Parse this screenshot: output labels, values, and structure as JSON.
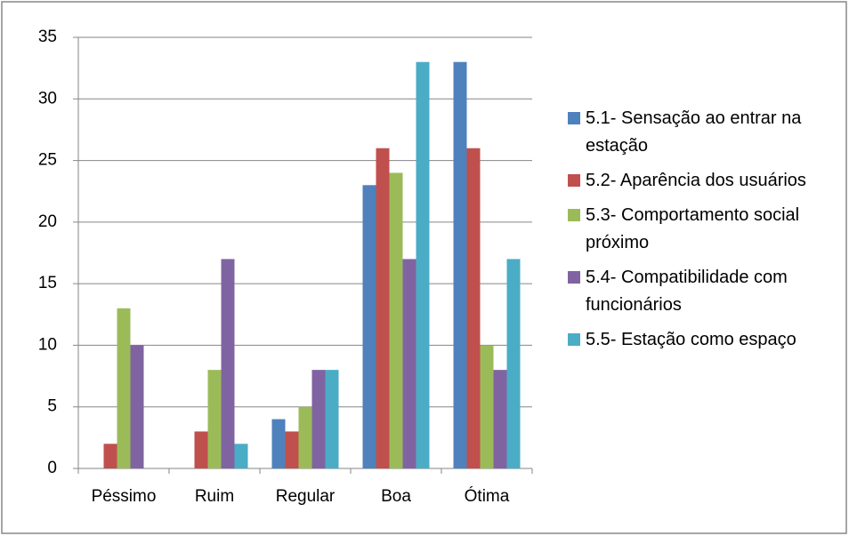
{
  "chart_data": {
    "type": "bar",
    "categories": [
      "Péssimo",
      "Ruim",
      "Regular",
      "Boa",
      "Ótima"
    ],
    "series": [
      {
        "name": "5.1- Sensação ao entrar na estação",
        "color": "#4f81bd",
        "values": [
          0,
          0,
          4,
          23,
          33
        ]
      },
      {
        "name": "5.2- Aparência dos usuários",
        "color": "#c0504d",
        "values": [
          2,
          3,
          3,
          26,
          26
        ]
      },
      {
        "name": "5.3- Comportamento social próximo",
        "color": "#9bbb59",
        "values": [
          13,
          8,
          5,
          24,
          10
        ]
      },
      {
        "name": "5.4- Compatibilidade com funcionários",
        "color": "#8064a2",
        "values": [
          10,
          17,
          8,
          17,
          8
        ]
      },
      {
        "name": "5.5- Estação como espaço",
        "color": "#4bacc6",
        "values": [
          0,
          2,
          8,
          33,
          17
        ]
      }
    ],
    "ylim": [
      0,
      35
    ],
    "yticks": [
      0,
      5,
      10,
      15,
      20,
      25,
      30,
      35
    ],
    "grid": true,
    "legend": "right"
  }
}
